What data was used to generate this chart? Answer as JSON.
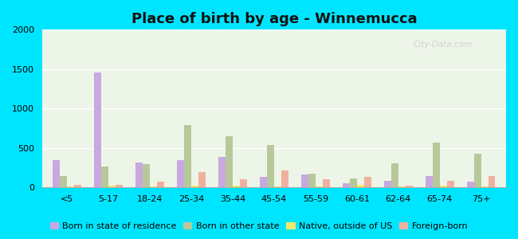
{
  "title": "Place of birth by age - Winnemucca",
  "categories": [
    "<5",
    "5-17",
    "18-24",
    "25-34",
    "35-44",
    "45-54",
    "55-59",
    "60-61",
    "62-64",
    "65-74",
    "75+"
  ],
  "series": {
    "Born in state of residence": [
      350,
      1460,
      320,
      350,
      390,
      130,
      160,
      50,
      80,
      140,
      70
    ],
    "Born in other state": [
      140,
      270,
      295,
      790,
      650,
      540,
      170,
      110,
      310,
      565,
      430
    ],
    "Native, outside of US": [
      10,
      20,
      10,
      20,
      25,
      15,
      15,
      30,
      15,
      20,
      15
    ],
    "Foreign-born": [
      30,
      30,
      75,
      190,
      105,
      215,
      100,
      130,
      20,
      80,
      140
    ]
  },
  "colors": {
    "Born in state of residence": "#c8a8e0",
    "Born in other state": "#b8c89a",
    "Native, outside of US": "#f0e868",
    "Foreign-born": "#f0b0a0"
  },
  "ylim": [
    0,
    2000
  ],
  "yticks": [
    0,
    500,
    1000,
    1500,
    2000
  ],
  "outer_background": "#00e5ff",
  "plot_bg_top": "#f8fffc",
  "plot_bg_bottom": "#d8eed8",
  "bar_width": 0.17,
  "title_fontsize": 13,
  "legend_fontsize": 8,
  "tick_fontsize": 8
}
